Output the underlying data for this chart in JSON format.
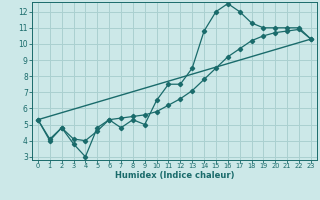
{
  "xlabel": "Humidex (Indice chaleur)",
  "bg_color": "#cce8e8",
  "grid_color": "#aad0d0",
  "line_color": "#1a6b6b",
  "xlim": [
    -0.5,
    23.5
  ],
  "ylim": [
    2.8,
    12.6
  ],
  "xticks": [
    0,
    1,
    2,
    3,
    4,
    5,
    6,
    7,
    8,
    9,
    10,
    11,
    12,
    13,
    14,
    15,
    16,
    17,
    18,
    19,
    20,
    21,
    22,
    23
  ],
  "yticks": [
    3,
    4,
    5,
    6,
    7,
    8,
    9,
    10,
    11,
    12
  ],
  "series1_x": [
    0,
    1,
    2,
    3,
    4,
    5,
    6,
    7,
    8,
    9,
    10,
    11,
    12,
    13,
    14,
    15,
    16,
    17,
    18,
    19,
    20,
    21,
    22,
    23
  ],
  "series1_y": [
    5.3,
    4.0,
    4.8,
    3.8,
    3.0,
    4.8,
    5.3,
    4.8,
    5.3,
    5.0,
    6.5,
    7.5,
    7.5,
    8.5,
    10.8,
    12.0,
    12.5,
    12.0,
    11.3,
    11.0,
    11.0,
    11.0,
    11.0,
    10.3
  ],
  "series2_x": [
    0,
    1,
    2,
    3,
    4,
    5,
    6,
    7,
    8,
    9,
    10,
    11,
    12,
    13,
    14,
    15,
    16,
    17,
    18,
    19,
    20,
    21,
    22,
    23
  ],
  "series2_y": [
    5.3,
    4.1,
    4.8,
    4.1,
    4.0,
    4.6,
    5.3,
    5.4,
    5.5,
    5.6,
    5.8,
    6.2,
    6.6,
    7.1,
    7.8,
    8.5,
    9.2,
    9.7,
    10.2,
    10.5,
    10.7,
    10.8,
    10.9,
    10.3
  ],
  "series3_x": [
    0,
    23
  ],
  "series3_y": [
    5.3,
    10.3
  ]
}
